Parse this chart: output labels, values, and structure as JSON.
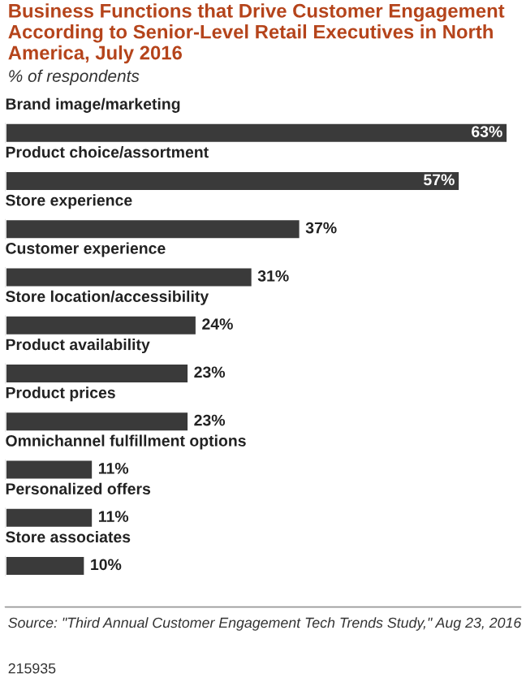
{
  "chart_data": {
    "type": "bar",
    "orientation": "horizontal",
    "title": "Business Functions that Drive Customer Engagement According to Senior-Level Retail Executives in North America, July 2016",
    "subtitle": "% of respondents",
    "categories": [
      "Brand image/marketing",
      "Product choice/assortment",
      "Store experience",
      "Customer experience",
      "Store location/accessibility",
      "Product availability",
      "Product prices",
      "Omnichannel fulfillment options",
      "Personalized offers",
      "Store associates"
    ],
    "values": [
      63,
      57,
      37,
      31,
      24,
      23,
      23,
      11,
      11,
      10
    ],
    "value_labels": [
      "63%",
      "57%",
      "37%",
      "31%",
      "24%",
      "23%",
      "23%",
      "11%",
      "11%",
      "10%"
    ],
    "color": "#3a3a3a",
    "annotations": [
      "Source: \"Third Annual Customer Engagement Tech Trends Study,\" Aug 23, 2016",
      "215935"
    ]
  }
}
